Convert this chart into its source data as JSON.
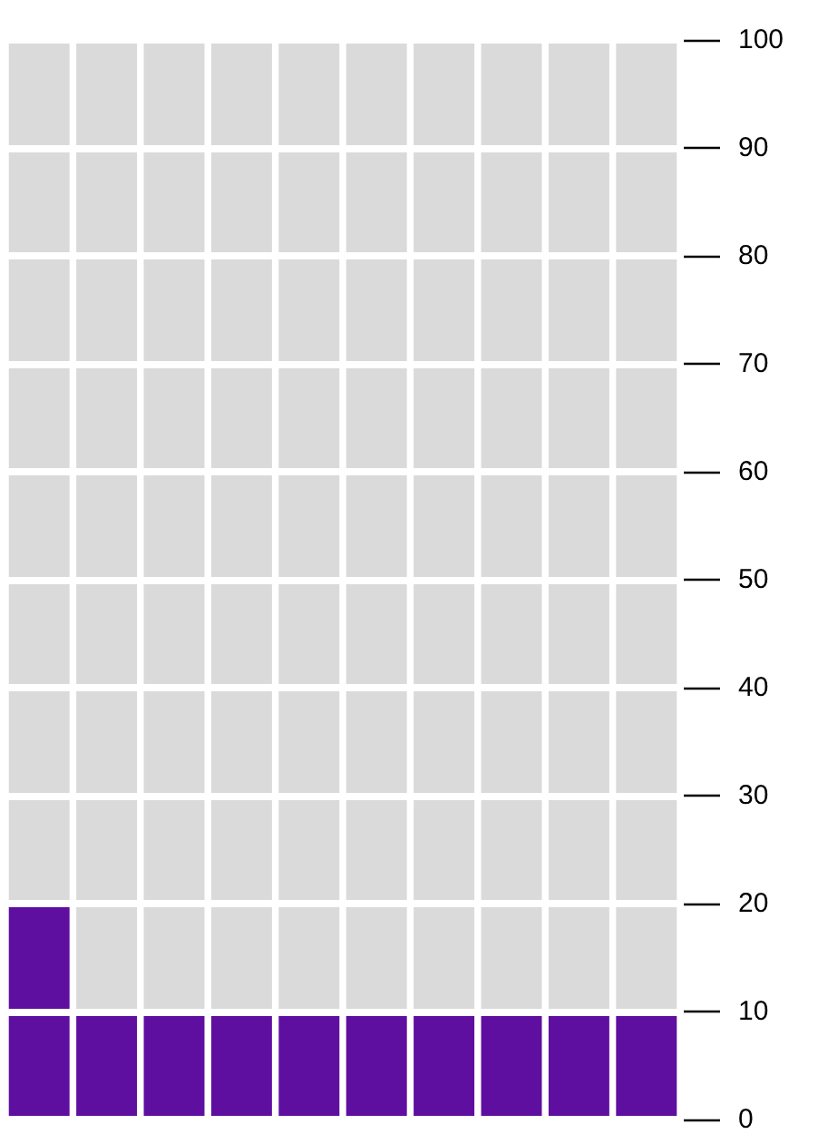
{
  "chart_data": {
    "type": "bar",
    "stacked": true,
    "categories": [
      null,
      null,
      null,
      null,
      null,
      null,
      null,
      null,
      null,
      null
    ],
    "series": [
      {
        "color": "#5f0f9f",
        "values": [
          20,
          10,
          10,
          10,
          10,
          10,
          10,
          10,
          10,
          10
        ]
      },
      {
        "color": "#dadada",
        "values": [
          80,
          90,
          90,
          90,
          90,
          90,
          90,
          90,
          90,
          90
        ]
      }
    ],
    "ylim": [
      0,
      100
    ],
    "yticks": [
      0,
      10,
      20,
      30,
      40,
      50,
      60,
      70,
      80,
      90,
      100
    ],
    "grid": "y"
  }
}
